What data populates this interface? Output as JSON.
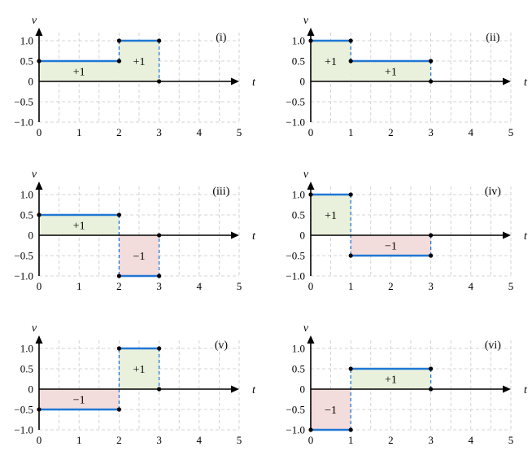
{
  "chart_data": [
    {
      "type": "step",
      "label": "(i)",
      "xlabel": "t",
      "ylabel": "v",
      "xlim": [
        0,
        5
      ],
      "ylim": [
        -1.0,
        1.0
      ],
      "x_ticks": [
        "0",
        "1",
        "2",
        "3",
        "4",
        "5"
      ],
      "y_ticks": [
        "1.0",
        "0.5",
        "0",
        "−0.5",
        "−1.0"
      ],
      "grid": true,
      "segments": [
        {
          "x_start": 0,
          "x_end": 2,
          "v": 0.5,
          "area_label": "+1"
        },
        {
          "x_start": 2,
          "x_end": 3,
          "v": 1.0,
          "area_label": "+1"
        }
      ]
    },
    {
      "type": "step",
      "label": "(ii)",
      "xlabel": "t",
      "ylabel": "v",
      "xlim": [
        0,
        5
      ],
      "ylim": [
        -1.0,
        1.0
      ],
      "x_ticks": [
        "0",
        "1",
        "2",
        "3",
        "4",
        "5"
      ],
      "y_ticks": [
        "1.0",
        "0.5",
        "0",
        "−0.5",
        "−1.0"
      ],
      "grid": true,
      "segments": [
        {
          "x_start": 0,
          "x_end": 1,
          "v": 1.0,
          "area_label": "+1"
        },
        {
          "x_start": 1,
          "x_end": 3,
          "v": 0.5,
          "area_label": "+1"
        }
      ]
    },
    {
      "type": "step",
      "label": "(iii)",
      "xlabel": "t",
      "ylabel": "v",
      "xlim": [
        0,
        5
      ],
      "ylim": [
        -1.0,
        1.0
      ],
      "x_ticks": [
        "0",
        "1",
        "2",
        "3",
        "4",
        "5"
      ],
      "y_ticks": [
        "1.0",
        "0.5",
        "0",
        "−0.5",
        "−1.0"
      ],
      "grid": true,
      "segments": [
        {
          "x_start": 0,
          "x_end": 2,
          "v": 0.5,
          "area_label": "+1"
        },
        {
          "x_start": 2,
          "x_end": 3,
          "v": -1.0,
          "area_label": "−1"
        }
      ]
    },
    {
      "type": "step",
      "label": "(iv)",
      "xlabel": "t",
      "ylabel": "v",
      "xlim": [
        0,
        5
      ],
      "ylim": [
        -1.0,
        1.0
      ],
      "x_ticks": [
        "0",
        "1",
        "2",
        "3",
        "4",
        "5"
      ],
      "y_ticks": [
        "1.0",
        "0.5",
        "0",
        "−0.5",
        "−1.0"
      ],
      "grid": true,
      "segments": [
        {
          "x_start": 0,
          "x_end": 1,
          "v": 1.0,
          "area_label": "+1"
        },
        {
          "x_start": 1,
          "x_end": 3,
          "v": -0.5,
          "area_label": "−1"
        }
      ]
    },
    {
      "type": "step",
      "label": "(v)",
      "xlabel": "t",
      "ylabel": "v",
      "xlim": [
        0,
        5
      ],
      "ylim": [
        -1.0,
        1.0
      ],
      "x_ticks": [
        "0",
        "1",
        "2",
        "3",
        "4",
        "5"
      ],
      "y_ticks": [
        "1.0",
        "0.5",
        "0",
        "−0.5",
        "−1.0"
      ],
      "grid": true,
      "segments": [
        {
          "x_start": 0,
          "x_end": 2,
          "v": -0.5,
          "area_label": "−1"
        },
        {
          "x_start": 2,
          "x_end": 3,
          "v": 1.0,
          "area_label": "+1"
        }
      ]
    },
    {
      "type": "step",
      "label": "(vi)",
      "xlabel": "t",
      "ylabel": "v",
      "xlim": [
        0,
        5
      ],
      "ylim": [
        -1.0,
        1.0
      ],
      "x_ticks": [
        "0",
        "1",
        "2",
        "3",
        "4",
        "5"
      ],
      "y_ticks": [
        "1.0",
        "0.5",
        "0",
        "−0.5",
        "−1.0"
      ],
      "grid": true,
      "segments": [
        {
          "x_start": 0,
          "x_end": 1,
          "v": -1.0,
          "area_label": "−1"
        },
        {
          "x_start": 1,
          "x_end": 3,
          "v": 0.5,
          "area_label": "+1"
        }
      ]
    }
  ],
  "colors": {
    "positive_fill": "#e9f1dc",
    "negative_fill": "#f3dcdc",
    "line": "#1f77d4",
    "grid": "#c8c8c8",
    "axis": "#000000",
    "point": "#000000"
  }
}
